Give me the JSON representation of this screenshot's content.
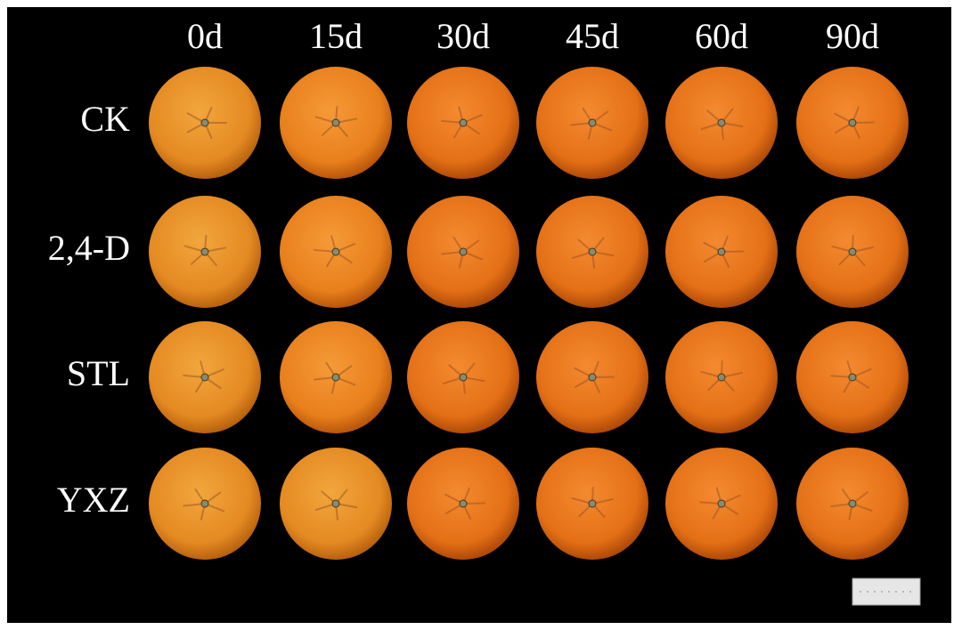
{
  "columns": [
    "0d",
    "15d",
    "30d",
    "45d",
    "60d",
    "90d"
  ],
  "rows": [
    "CK",
    "2,4-D",
    "STL",
    "YXZ"
  ]
}
